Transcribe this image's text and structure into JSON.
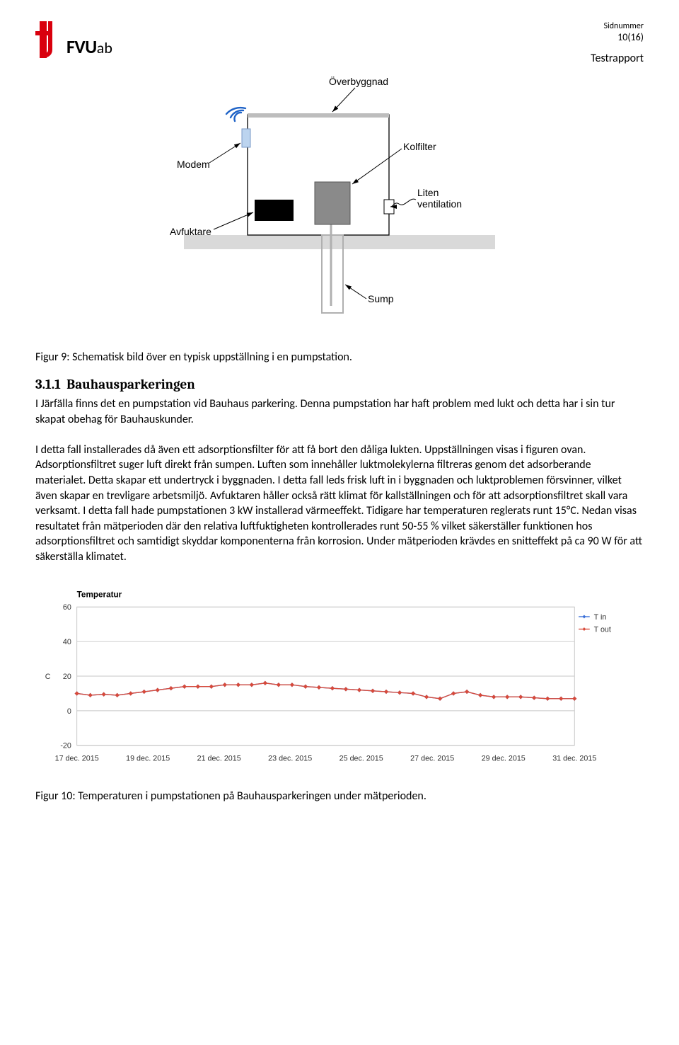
{
  "header": {
    "sidnummer_label": "Sidnummer",
    "page_num": "10(16)",
    "doc_type": "Testrapport",
    "logo_fvu": "FVU",
    "logo_ab": "ab",
    "logo_color": "#d9000d"
  },
  "figure9": {
    "caption": "Figur 9: Schematisk bild över en typisk uppställning i en pumpstation.",
    "labels": {
      "overbyggnad": "Överbyggnad",
      "kolfilter": "Kolfilter",
      "ventilation": "Liten ventilation",
      "sump": "Sump",
      "modem": "Modem",
      "avfuktare": "Avfuktare"
    },
    "colors": {
      "box_stroke": "#000000",
      "box_fill": "#ffffff",
      "modem_fill": "#bcd4ef",
      "avfuktare_fill": "#000000",
      "kolfilter_fill": "#8a8a8a",
      "ground_fill": "#d9d9d9",
      "sump_stroke": "#b0b0b0",
      "wifi_color": "#1f63c7",
      "text_color": "#000000"
    }
  },
  "section": {
    "heading_num": "3.1.1",
    "heading_text": "Bauhausparkeringen",
    "paragraph": "I Järfälla finns det en pumpstation vid Bauhaus parkering. Denna pumpstation har haft problem med lukt och detta har i sin tur skapat obehag för Bauhauskunder.\n\nI detta fall installerades då även ett adsorptionsfilter för att få bort den dåliga lukten. Uppställningen visas i figuren ovan. Adsorptionsfiltret suger luft direkt från sumpen. Luften som innehåller luktmolekylerna filtreras genom det adsorberande materialet. Detta skapar ett undertryck i byggnaden. I detta fall leds frisk luft in i byggnaden och luktproblemen försvinner, vilket även skapar en trevligare arbetsmiljö. Avfuktaren håller också rätt klimat för kallställningen och för att adsorptionsfiltret skall vara verksamt. I detta fall hade pumpstationen 3 kW installerad värmeeffekt. Tidigare har temperaturen reglerats runt 15°C. Nedan visas resultatet från mätperioden där den relativa luftfuktigheten kontrollerades runt 50-55 % vilket säkerställer funktionen hos adsorptionsfiltret och samtidigt skyddar komponenterna från korrosion. Under mätperioden krävdes en snitteffekt på ca 90 W för att säkerställa klimatet."
  },
  "chart": {
    "title": "Temperatur",
    "y_label": "C",
    "ylim": [
      -20,
      60
    ],
    "yticks": [
      -20,
      0,
      20,
      40,
      60
    ],
    "xticks": [
      "17 dec. 2015",
      "19 dec. 2015",
      "21 dec. 2015",
      "23 dec. 2015",
      "25 dec. 2015",
      "27 dec. 2015",
      "29 dec. 2015",
      "31 dec. 2015"
    ],
    "series": [
      {
        "name": "T in",
        "color": "#3a6fd8",
        "values": [
          10,
          9,
          9.5,
          9,
          10,
          11,
          12,
          13,
          14,
          14,
          14,
          15,
          15,
          15,
          16,
          15,
          15,
          14,
          13.5,
          13,
          12.5,
          12,
          11.5,
          11,
          10.5,
          10,
          8,
          7,
          10,
          11,
          9,
          8,
          8,
          8,
          7.5,
          7,
          7,
          7
        ]
      },
      {
        "name": "T out",
        "color": "#d84a3a",
        "values": [
          10,
          9,
          9.5,
          9,
          10,
          11,
          12,
          13,
          14,
          14,
          14,
          15,
          15,
          15,
          16,
          15,
          15,
          14,
          13.5,
          13,
          12.5,
          12,
          11.5,
          11,
          10.5,
          10,
          8,
          7,
          10,
          11,
          9,
          8,
          8,
          8,
          7.5,
          7,
          7,
          7
        ]
      }
    ],
    "colors": {
      "grid": "#c7c7c7",
      "axis": "#000000",
      "bg": "#ffffff",
      "text": "#333333"
    },
    "fontsize": 11,
    "title_fontsize": 12,
    "marker": "diamond",
    "marker_size": 5,
    "line_width": 1.4
  },
  "figure10_caption": "Figur 10: Temperaturen i pumpstationen på Bauhausparkeringen under mätperioden."
}
